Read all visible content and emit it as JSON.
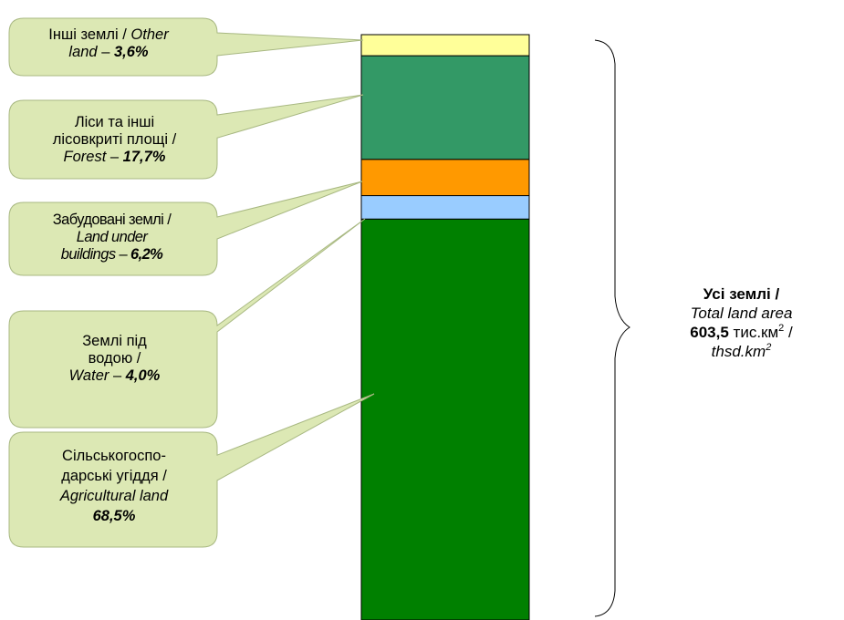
{
  "chart_data": {
    "type": "bar",
    "stacked": true,
    "series": [
      {
        "value": 68.5,
        "color": "#008000",
        "callout": {
          "line1": "Сільськогоспо-",
          "line2": "дарські угіддя /",
          "en": "Agricultural land",
          "pct": "68,5%"
        }
      },
      {
        "value": 4.0,
        "color": "#99CCFF",
        "callout": {
          "line1": "Землі під",
          "line2": "водою /",
          "en": "Water",
          "dash": " – ",
          "pct": "4,0%"
        }
      },
      {
        "value": 6.2,
        "color": "#FF9900",
        "callout": {
          "line1": "Забудовані землі /",
          "en1": "Land under",
          "en2": "buildings",
          "dash": " – ",
          "pct": "6,2%"
        }
      },
      {
        "value": 17.7,
        "color": "#339966",
        "callout": {
          "line1": "Ліси та інші",
          "line2": "лісовкриті площі /",
          "en": "Forest",
          "dash": " – ",
          "pct": "17,7%"
        }
      },
      {
        "value": 3.6,
        "color": "#FFFF99",
        "callout": {
          "line1": "Інші землі / ",
          "en1": "Other",
          "en2": "land",
          "dash": " – ",
          "pct": "3,6%"
        }
      }
    ],
    "callout_fill": "#DCE8B4",
    "total": {
      "title": "Усі землі /",
      "en": "Total land area",
      "value": "603,5",
      "unit_ua": "тис.км",
      "sup": "2",
      "slash": " /",
      "unit_en": "thsd.km",
      "sup_en": "2"
    }
  }
}
